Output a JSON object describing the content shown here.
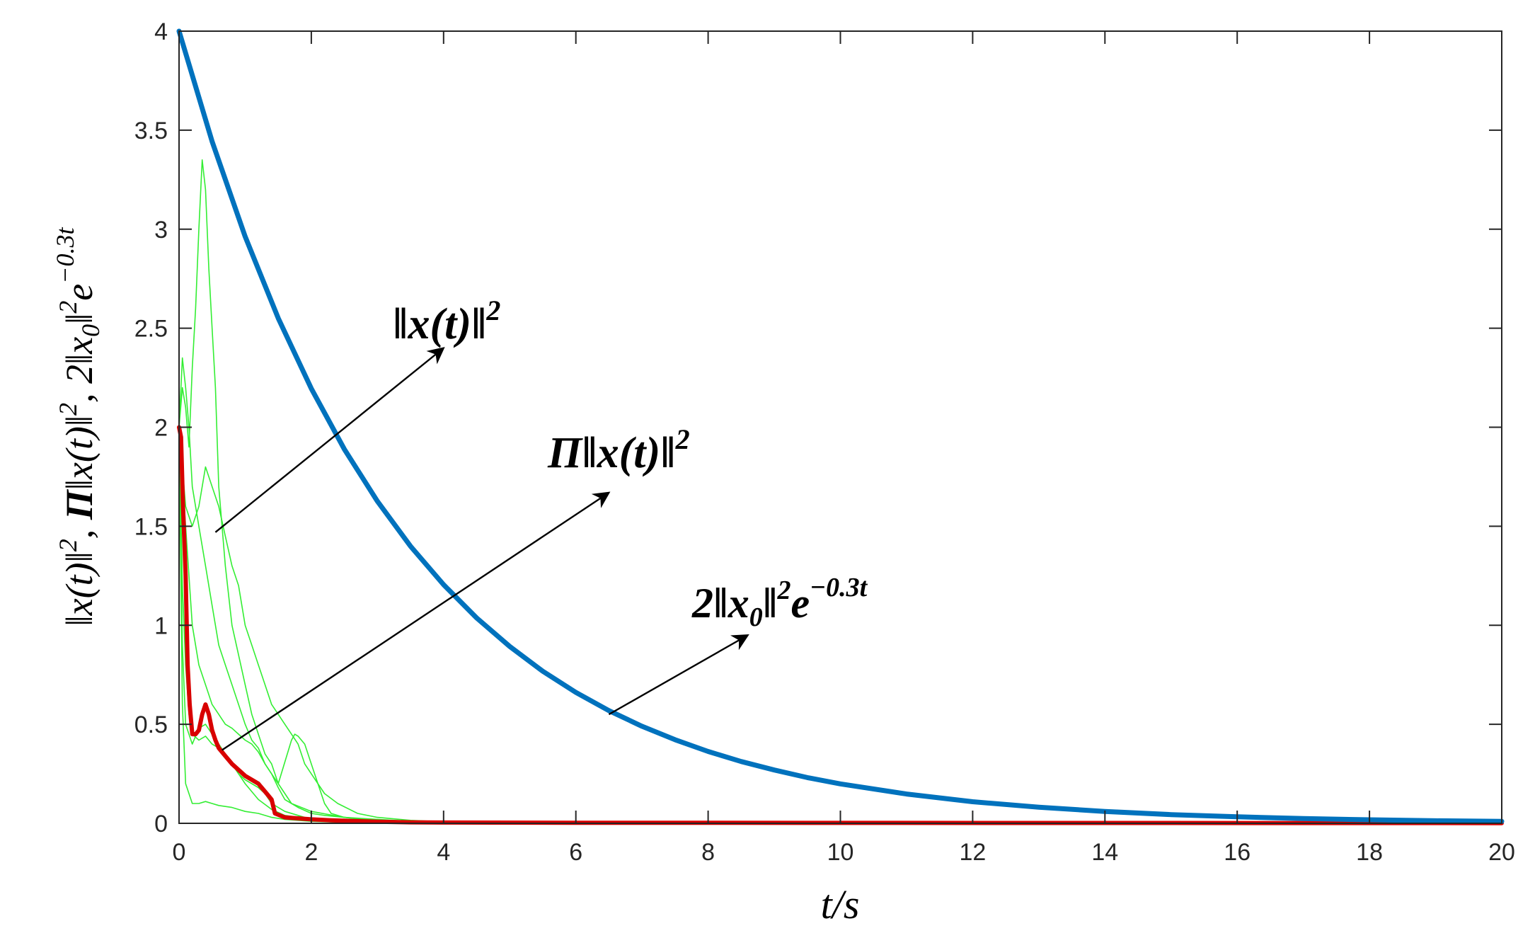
{
  "chart_data": {
    "type": "line",
    "xlabel": "t/s",
    "ylabel": "‖x(t)‖², Π‖x(t)‖², 2‖x₀‖²e^(−0.3t)",
    "xlim": [
      0,
      20
    ],
    "ylim": [
      0,
      4
    ],
    "xticks": [
      0,
      2,
      4,
      6,
      8,
      10,
      12,
      14,
      16,
      18,
      20
    ],
    "yticks": [
      0,
      0.5,
      1,
      1.5,
      2,
      2.5,
      3,
      3.5,
      4
    ],
    "grid": false,
    "annotations": [
      {
        "text": "‖x(t)‖²",
        "from": [
          0.55,
          1.47
        ],
        "to": [
          4.0,
          2.4
        ]
      },
      {
        "text": "Π‖x(t)‖²",
        "from": [
          0.65,
          0.37
        ],
        "to": [
          6.5,
          1.67
        ]
      },
      {
        "text": "2‖x₀‖²e^(−0.3t)",
        "from": [
          6.5,
          0.55
        ],
        "to": [
          8.6,
          0.95
        ]
      }
    ],
    "series": [
      {
        "color": "#0072BD",
        "x": [
          0,
          0.5,
          1,
          1.5,
          2,
          2.5,
          3,
          3.5,
          4,
          4.5,
          5,
          5.5,
          6,
          6.5,
          7,
          7.5,
          8,
          8.5,
          9,
          9.5,
          10,
          11,
          12,
          13,
          14,
          15,
          16,
          17,
          18,
          19,
          20
        ],
        "y": [
          4.0,
          3.443,
          2.963,
          2.55,
          2.195,
          1.889,
          1.626,
          1.399,
          1.205,
          1.037,
          0.893,
          0.768,
          0.661,
          0.569,
          0.49,
          0.422,
          0.363,
          0.312,
          0.269,
          0.231,
          0.199,
          0.148,
          0.109,
          0.081,
          0.06,
          0.044,
          0.033,
          0.024,
          0.018,
          0.013,
          0.01
        ]
      },
      {
        "color": "#D80000",
        "x": [
          0,
          0.03,
          0.06,
          0.1,
          0.13,
          0.16,
          0.2,
          0.25,
          0.3,
          0.35,
          0.4,
          0.45,
          0.5,
          0.55,
          0.6,
          0.7,
          0.8,
          0.9,
          1.0,
          1.1,
          1.2,
          1.3,
          1.35,
          1.4,
          1.45,
          1.6,
          1.8,
          2.0,
          2.3,
          2.6,
          3.0,
          3.5,
          4,
          6,
          10,
          20
        ],
        "y": [
          2.0,
          1.95,
          1.6,
          1.25,
          0.8,
          0.6,
          0.45,
          0.45,
          0.47,
          0.55,
          0.6,
          0.55,
          0.47,
          0.42,
          0.38,
          0.34,
          0.3,
          0.27,
          0.24,
          0.22,
          0.2,
          0.16,
          0.14,
          0.12,
          0.05,
          0.03,
          0.025,
          0.02,
          0.015,
          0.012,
          0.008,
          0.005,
          0.004,
          0.003,
          0.002,
          0.001
        ]
      },
      {
        "color": "#33EE33",
        "x": [
          0,
          0.05,
          0.1,
          0.15,
          0.2,
          0.25,
          0.3,
          0.35,
          0.4,
          0.45,
          0.5,
          0.55,
          0.6,
          0.7,
          0.8,
          0.9,
          1.0,
          1.1,
          1.2,
          1.3,
          1.4,
          1.5,
          1.7,
          2.0,
          2.5,
          3.0,
          3.5,
          4.0,
          5.0
        ],
        "y": [
          2.0,
          2.2,
          2.1,
          1.9,
          2.3,
          2.6,
          3.0,
          3.35,
          3.2,
          2.8,
          2.5,
          2.2,
          1.7,
          1.3,
          1.0,
          0.85,
          0.7,
          0.55,
          0.45,
          0.35,
          0.3,
          0.2,
          0.1,
          0.06,
          0.03,
          0.02,
          0.01,
          0.005,
          0.002
        ]
      },
      {
        "color": "#33EE33",
        "x": [
          0,
          0.05,
          0.1,
          0.15,
          0.2,
          0.3,
          0.4,
          0.5,
          0.6,
          0.7,
          0.8,
          0.9,
          1.0,
          1.1,
          1.2,
          1.3,
          1.4,
          1.5,
          1.6,
          1.8,
          2.0,
          2.2,
          2.5,
          3.0,
          3.5,
          4.0
        ],
        "y": [
          2.0,
          2.35,
          2.2,
          2.0,
          1.7,
          1.5,
          1.3,
          1.1,
          0.9,
          0.8,
          0.7,
          0.6,
          0.5,
          0.42,
          0.38,
          0.3,
          0.25,
          0.18,
          0.12,
          0.08,
          0.05,
          0.04,
          0.03,
          0.015,
          0.008,
          0.004
        ]
      },
      {
        "color": "#33EE33",
        "x": [
          0,
          0.05,
          0.1,
          0.2,
          0.3,
          0.4,
          0.5,
          0.6,
          0.7,
          0.8,
          0.9,
          1.0,
          1.1,
          1.2,
          1.3,
          1.4,
          1.5,
          1.6,
          1.7,
          1.8,
          1.9,
          2.0,
          2.1,
          2.2,
          2.4,
          2.7,
          3.0,
          3.5,
          4.0
        ],
        "y": [
          2.0,
          1.8,
          1.6,
          1.5,
          1.6,
          1.8,
          1.7,
          1.6,
          1.45,
          1.3,
          1.2,
          1.0,
          0.9,
          0.8,
          0.7,
          0.6,
          0.55,
          0.5,
          0.45,
          0.4,
          0.3,
          0.25,
          0.2,
          0.15,
          0.1,
          0.05,
          0.03,
          0.015,
          0.008
        ]
      },
      {
        "color": "#33EE33",
        "x": [
          0,
          0.1,
          0.2,
          0.3,
          0.4,
          0.5,
          0.6,
          0.7,
          0.8,
          0.9,
          1.0,
          1.1,
          1.2,
          1.3,
          1.4,
          1.5,
          1.7,
          1.75,
          1.8,
          1.9,
          2.0,
          2.1,
          2.2,
          2.3,
          2.5,
          3.0,
          3.5
        ],
        "y": [
          2.0,
          1.5,
          1.0,
          0.8,
          0.7,
          0.6,
          0.55,
          0.5,
          0.48,
          0.45,
          0.42,
          0.4,
          0.36,
          0.3,
          0.25,
          0.2,
          0.42,
          0.45,
          0.44,
          0.4,
          0.3,
          0.2,
          0.1,
          0.05,
          0.03,
          0.01,
          0.005
        ]
      },
      {
        "color": "#33EE33",
        "x": [
          0,
          0.05,
          0.1,
          0.15,
          0.2,
          0.3,
          0.4,
          0.5,
          0.6,
          0.7,
          0.8,
          0.9,
          1.0,
          1.1,
          1.2,
          1.3,
          1.4,
          1.6,
          1.8,
          2.0,
          2.5,
          3.0
        ],
        "y": [
          2.0,
          1.2,
          0.8,
          0.55,
          0.45,
          0.42,
          0.44,
          0.4,
          0.38,
          0.35,
          0.3,
          0.25,
          0.22,
          0.2,
          0.18,
          0.15,
          0.1,
          0.06,
          0.04,
          0.02,
          0.01,
          0.005
        ]
      },
      {
        "color": "#33EE33",
        "x": [
          0,
          0.05,
          0.1,
          0.2,
          0.3,
          0.4,
          0.5,
          0.6,
          0.8,
          1.0,
          1.2,
          1.4,
          1.6,
          2.0,
          2.5,
          3.0
        ],
        "y": [
          2.0,
          0.6,
          0.2,
          0.1,
          0.1,
          0.11,
          0.1,
          0.09,
          0.08,
          0.06,
          0.05,
          0.03,
          0.02,
          0.01,
          0.005,
          0.002
        ]
      },
      {
        "color": "#33EE33",
        "x": [
          0,
          0.05,
          0.1,
          0.2,
          0.3,
          0.4,
          0.5,
          0.6,
          0.7,
          0.8,
          0.9,
          1.0,
          1.2,
          1.4,
          1.6,
          2.0,
          2.5
        ],
        "y": [
          2.0,
          0.9,
          0.5,
          0.4,
          0.48,
          0.5,
          0.45,
          0.4,
          0.35,
          0.3,
          0.25,
          0.2,
          0.12,
          0.07,
          0.04,
          0.02,
          0.008
        ]
      }
    ]
  }
}
